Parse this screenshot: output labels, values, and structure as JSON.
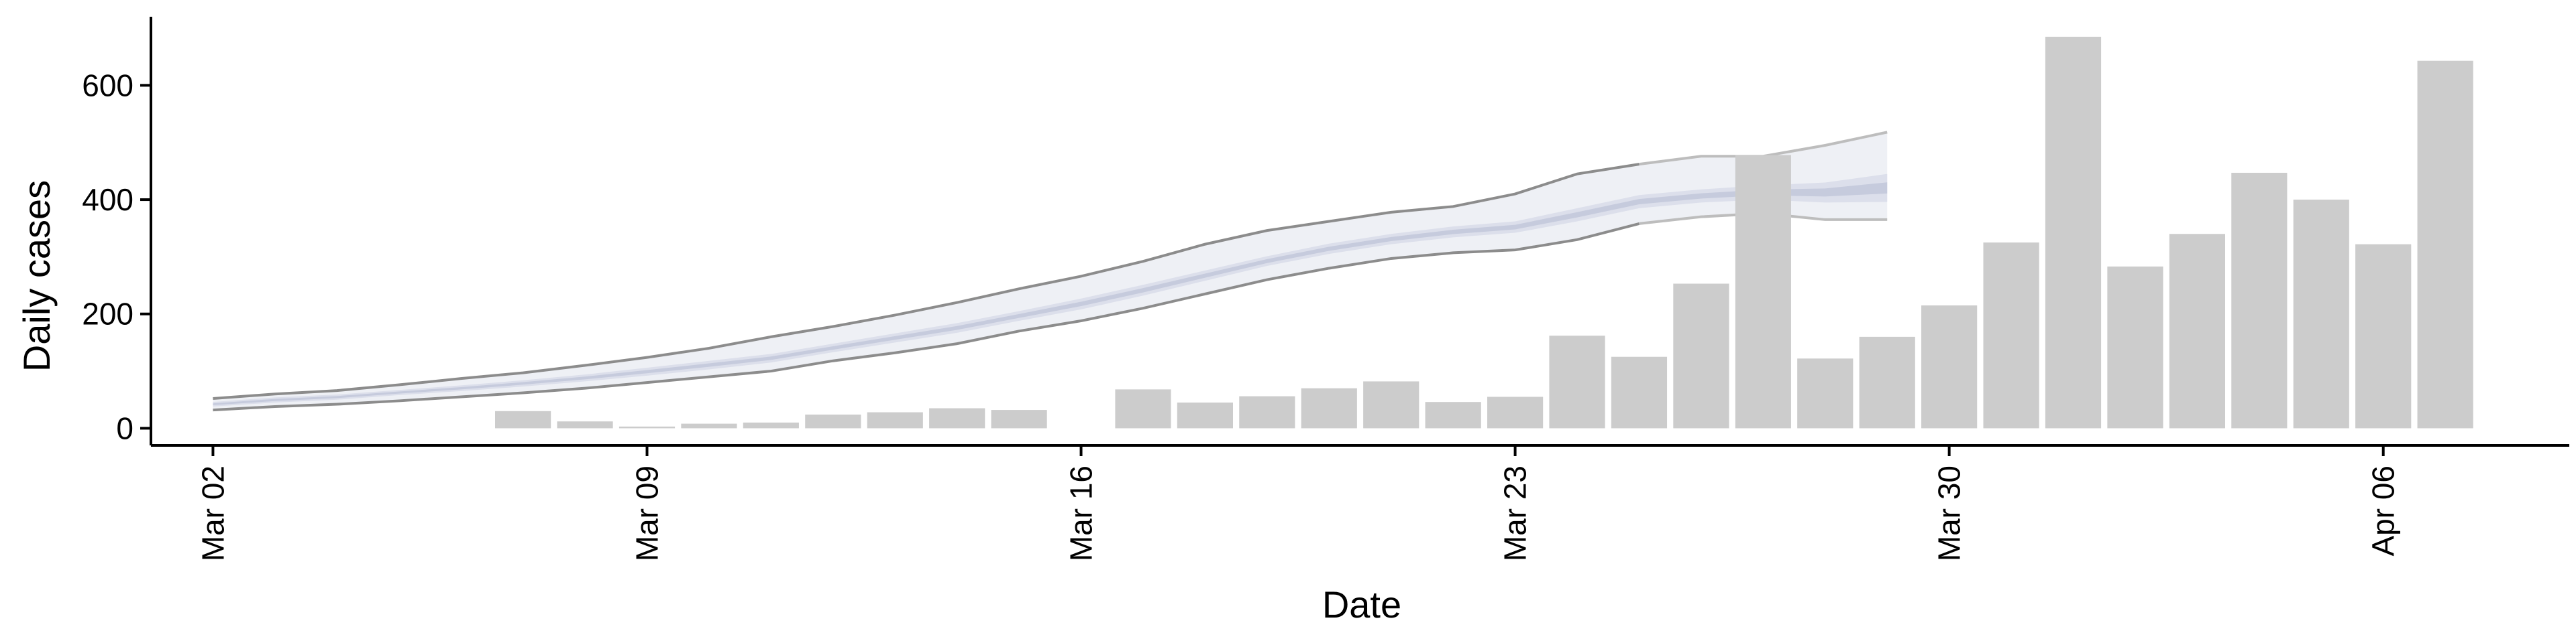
{
  "chart_data": {
    "type": "bar",
    "title": "",
    "xlabel": "Date",
    "ylabel": "Daily cases",
    "ylim": [
      -30,
      720
    ],
    "xlim": [
      "2020-03-01",
      "2020-04-09"
    ],
    "x_ticks": [
      {
        "date": "2020-03-02",
        "label": "Mar 02"
      },
      {
        "date": "2020-03-09",
        "label": "Mar 09"
      },
      {
        "date": "2020-03-16",
        "label": "Mar 16"
      },
      {
        "date": "2020-03-23",
        "label": "Mar 23"
      },
      {
        "date": "2020-03-30",
        "label": "Mar 30"
      },
      {
        "date": "2020-04-06",
        "label": "Apr 06"
      }
    ],
    "y_ticks": [
      0,
      200,
      400,
      600
    ],
    "grid": false,
    "colors": {
      "bars": "#cccccc",
      "band_outer": "#eef0f5",
      "band_middle": "#dcdfeb",
      "band_inner": "#c6cbdd",
      "band_edge": "#8c8c8c",
      "band_edge_right": "#bdbdbd"
    },
    "bars": [
      {
        "date": "2020-03-07",
        "value": 30
      },
      {
        "date": "2020-03-08",
        "value": 12
      },
      {
        "date": "2020-03-09",
        "value": 3
      },
      {
        "date": "2020-03-10",
        "value": 8
      },
      {
        "date": "2020-03-11",
        "value": 10
      },
      {
        "date": "2020-03-12",
        "value": 24
      },
      {
        "date": "2020-03-13",
        "value": 28
      },
      {
        "date": "2020-03-14",
        "value": 35
      },
      {
        "date": "2020-03-15",
        "value": 32
      },
      {
        "date": "2020-03-17",
        "value": 68
      },
      {
        "date": "2020-03-18",
        "value": 45
      },
      {
        "date": "2020-03-19",
        "value": 56
      },
      {
        "date": "2020-03-20",
        "value": 70
      },
      {
        "date": "2020-03-21",
        "value": 82
      },
      {
        "date": "2020-03-22",
        "value": 46
      },
      {
        "date": "2020-03-23",
        "value": 55
      },
      {
        "date": "2020-03-24",
        "value": 162
      },
      {
        "date": "2020-03-25",
        "value": 125
      },
      {
        "date": "2020-03-26",
        "value": 253
      },
      {
        "date": "2020-03-27",
        "value": 478
      },
      {
        "date": "2020-03-28",
        "value": 122
      },
      {
        "date": "2020-03-29",
        "value": 160
      },
      {
        "date": "2020-03-30",
        "value": 215
      },
      {
        "date": "2020-03-31",
        "value": 325
      },
      {
        "date": "2020-04-01",
        "value": 685
      },
      {
        "date": "2020-04-02",
        "value": 283
      },
      {
        "date": "2020-04-03",
        "value": 340
      },
      {
        "date": "2020-04-04",
        "value": 447
      },
      {
        "date": "2020-04-05",
        "value": 400
      },
      {
        "date": "2020-04-06",
        "value": 322
      },
      {
        "date": "2020-04-07",
        "value": 643
      }
    ],
    "band": {
      "dates": [
        "2020-03-02",
        "2020-03-03",
        "2020-03-04",
        "2020-03-05",
        "2020-03-06",
        "2020-03-07",
        "2020-03-08",
        "2020-03-09",
        "2020-03-10",
        "2020-03-11",
        "2020-03-12",
        "2020-03-13",
        "2020-03-14",
        "2020-03-15",
        "2020-03-16",
        "2020-03-17",
        "2020-03-18",
        "2020-03-19",
        "2020-03-20",
        "2020-03-21",
        "2020-03-22",
        "2020-03-23",
        "2020-03-24",
        "2020-03-25",
        "2020-03-26",
        "2020-03-27",
        "2020-03-28",
        "2020-03-29"
      ],
      "lower": [
        32,
        38,
        42,
        48,
        55,
        62,
        70,
        80,
        90,
        100,
        118,
        132,
        148,
        170,
        188,
        210,
        235,
        260,
        280,
        297,
        307,
        312,
        330,
        358,
        370,
        376,
        365,
        365
      ],
      "lower_mid": [
        38,
        45,
        50,
        58,
        65,
        73,
        82,
        92,
        103,
        115,
        133,
        150,
        167,
        188,
        208,
        232,
        258,
        284,
        305,
        322,
        334,
        342,
        362,
        385,
        395,
        400,
        395,
        396
      ],
      "upper_mid": [
        46,
        54,
        59,
        67,
        75,
        84,
        94,
        106,
        118,
        130,
        148,
        166,
        184,
        205,
        227,
        251,
        276,
        301,
        323,
        340,
        353,
        362,
        385,
        408,
        418,
        425,
        430,
        445
      ],
      "upper": [
        52,
        60,
        66,
        76,
        87,
        97,
        110,
        124,
        140,
        160,
        178,
        198,
        220,
        244,
        266,
        292,
        322,
        346,
        362,
        378,
        388,
        410,
        445,
        462,
        476,
        476,
        495,
        518
      ]
    }
  }
}
